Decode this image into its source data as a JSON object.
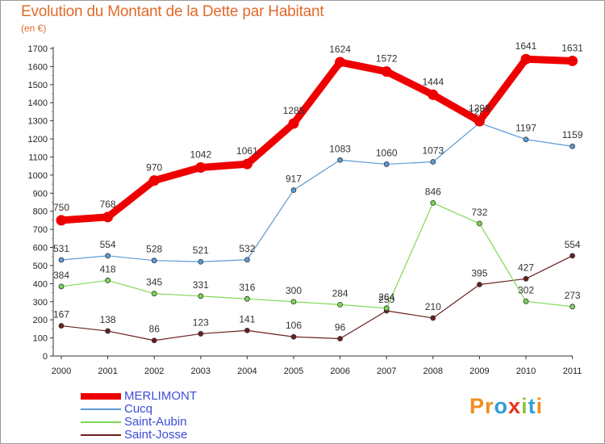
{
  "chart_data": {
    "type": "line",
    "title": "Evolution du Montant de la Dette par Habitant",
    "subtitle": "(en €)",
    "x": [
      "2000",
      "2001",
      "2002",
      "2003",
      "2004",
      "2005",
      "2006",
      "2007",
      "2008",
      "2009",
      "2010",
      "2011"
    ],
    "yticks": [
      "0",
      "100",
      "200",
      "300",
      "400",
      "500",
      "600",
      "700",
      "800",
      "900",
      "1000",
      "1100",
      "1200",
      "1300",
      "1400",
      "1500",
      "1600",
      "1700"
    ],
    "ylim": [
      0,
      1700
    ],
    "grid": false,
    "legend_position": "bottom-left",
    "series": [
      {
        "name": "MERLIMONT",
        "color": "#ee0000",
        "values": [
          750,
          768,
          970,
          1042,
          1061,
          1285,
          1624,
          1572,
          1444,
          1298,
          1641,
          1631
        ],
        "labels": [
          "750",
          "768",
          "970",
          "1042",
          "1061",
          "1285",
          "1624",
          "1572",
          "1444",
          "1298",
          "1641",
          "1631"
        ]
      },
      {
        "name": "Cucq",
        "color": "#5b9bd5",
        "values": [
          531,
          554,
          528,
          521,
          532,
          917,
          1083,
          1060,
          1073,
          1288,
          1197,
          1159
        ],
        "labels": [
          "531",
          "554",
          "528",
          "521",
          "532",
          "917",
          "1083",
          "1060",
          "1073",
          "1288",
          "1197",
          "1159"
        ]
      },
      {
        "name": "Saint-Aubin",
        "color": "#7ed957",
        "values": [
          384,
          418,
          345,
          331,
          316,
          300,
          284,
          264,
          846,
          732,
          302,
          273
        ],
        "labels": [
          "384",
          "418",
          "345",
          "331",
          "316",
          "300",
          "284",
          "264",
          "846",
          "732",
          "302",
          "273"
        ]
      },
      {
        "name": "Saint-Josse",
        "color": "#6b1f1f",
        "values": [
          167,
          138,
          86,
          123,
          141,
          106,
          96,
          250,
          210,
          395,
          427,
          554
        ],
        "labels": [
          "167",
          "138",
          "86",
          "123",
          "141",
          "106",
          "96",
          "250",
          "210",
          "395",
          "427",
          "554"
        ]
      }
    ]
  },
  "logo": {
    "letters": [
      "P",
      "r",
      "o",
      "x",
      "i",
      "t",
      "i"
    ],
    "colors": [
      "#f28c1e",
      "#f28c1e",
      "#2f9fd8",
      "#e8331c",
      "#8cc63f",
      "#2f9fd8",
      "#f28c1e"
    ]
  }
}
